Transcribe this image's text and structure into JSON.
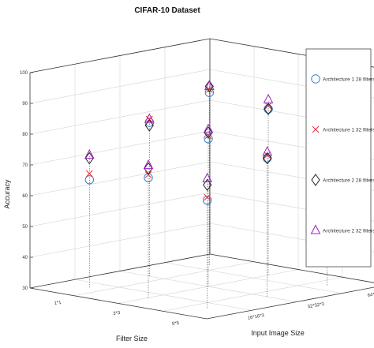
{
  "chart_data": {
    "type": "scatter",
    "projection": "3d",
    "title": "CIFAR-10 Dataset",
    "xlabel": "Filter Size",
    "ylabel": "Input Image Size",
    "zlabel": "Accuracy",
    "x_categories": [
      "1*1",
      "3*3",
      "5*5"
    ],
    "y_categories": [
      "16*16*3",
      "32*32*3",
      "64*64*3"
    ],
    "zlim": [
      30,
      100
    ],
    "z_ticks": [
      30,
      40,
      50,
      60,
      70,
      80,
      90,
      100
    ],
    "grid": true,
    "legend_position": "right",
    "colors": {
      "series1": "#3a82c4",
      "series2": "#e0303c",
      "series3": "#222222",
      "series4": "#a020c0"
    },
    "series": [
      {
        "name": "Architecture 1 28 filters",
        "marker": "circle",
        "points": [
          {
            "x": "1*1",
            "y": "16*16*3",
            "z": 65
          },
          {
            "x": "1*1",
            "y": "32*32*3",
            "z": 80
          },
          {
            "x": "1*1",
            "y": "64*64*3",
            "z": 86
          },
          {
            "x": "3*3",
            "y": "16*16*3",
            "z": 69
          },
          {
            "x": "3*3",
            "y": "32*32*3",
            "z": 78
          },
          {
            "x": "3*3",
            "y": "64*64*3",
            "z": 84
          },
          {
            "x": "5*5",
            "y": "16*16*3",
            "z": 65
          },
          {
            "x": "5*5",
            "y": "32*32*3",
            "z": 75
          },
          {
            "x": "5*5",
            "y": "64*64*3",
            "z": 81
          }
        ]
      },
      {
        "name": "Architecture 1 32 filters",
        "marker": "x",
        "points": [
          {
            "x": "1*1",
            "y": "16*16*3",
            "z": 67
          },
          {
            "x": "1*1",
            "y": "32*32*3",
            "z": 81
          },
          {
            "x": "1*1",
            "y": "64*64*3",
            "z": 87
          },
          {
            "x": "3*3",
            "y": "16*16*3",
            "z": 70
          },
          {
            "x": "3*3",
            "y": "32*32*3",
            "z": 79
          },
          {
            "x": "3*3",
            "y": "64*64*3",
            "z": 85
          },
          {
            "x": "5*5",
            "y": "16*16*3",
            "z": 66
          },
          {
            "x": "5*5",
            "y": "32*32*3",
            "z": 76
          },
          {
            "x": "5*5",
            "y": "64*64*3",
            "z": 82
          }
        ]
      },
      {
        "name": "Architecture 2 28 filters",
        "marker": "diamond",
        "points": [
          {
            "x": "1*1",
            "y": "16*16*3",
            "z": 72
          },
          {
            "x": "1*1",
            "y": "32*32*3",
            "z": 79
          },
          {
            "x": "1*1",
            "y": "64*64*3",
            "z": 88
          },
          {
            "x": "3*3",
            "y": "16*16*3",
            "z": 72
          },
          {
            "x": "3*3",
            "y": "32*32*3",
            "z": 80
          },
          {
            "x": "3*3",
            "y": "64*64*3",
            "z": 84
          },
          {
            "x": "5*5",
            "y": "16*16*3",
            "z": 70
          },
          {
            "x": "5*5",
            "y": "32*32*3",
            "z": 75
          },
          {
            "x": "5*5",
            "y": "64*64*3",
            "z": 83
          }
        ]
      },
      {
        "name": "Architecture 2 32 filters",
        "marker": "triangle",
        "points": [
          {
            "x": "1*1",
            "y": "16*16*3",
            "z": 73
          },
          {
            "x": "1*1",
            "y": "32*32*3",
            "z": 81
          },
          {
            "x": "1*1",
            "y": "64*64*3",
            "z": 88
          },
          {
            "x": "3*3",
            "y": "16*16*3",
            "z": 73
          },
          {
            "x": "3*3",
            "y": "32*32*3",
            "z": 81
          },
          {
            "x": "3*3",
            "y": "64*64*3",
            "z": 87
          },
          {
            "x": "5*5",
            "y": "16*16*3",
            "z": 72
          },
          {
            "x": "5*5",
            "y": "32*32*3",
            "z": 77
          },
          {
            "x": "5*5",
            "y": "64*64*3",
            "z": 84
          }
        ]
      }
    ]
  }
}
